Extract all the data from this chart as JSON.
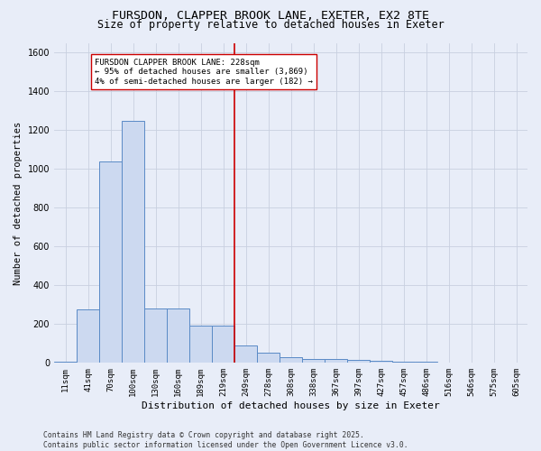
{
  "title1": "FURSDON, CLAPPER BROOK LANE, EXETER, EX2 8TE",
  "title2": "Size of property relative to detached houses in Exeter",
  "xlabel": "Distribution of detached houses by size in Exeter",
  "ylabel": "Number of detached properties",
  "categories": [
    "11sqm",
    "41sqm",
    "70sqm",
    "100sqm",
    "130sqm",
    "160sqm",
    "189sqm",
    "219sqm",
    "249sqm",
    "278sqm",
    "308sqm",
    "338sqm",
    "367sqm",
    "397sqm",
    "427sqm",
    "457sqm",
    "486sqm",
    "516sqm",
    "546sqm",
    "575sqm",
    "605sqm"
  ],
  "values": [
    5,
    275,
    1040,
    1250,
    280,
    280,
    190,
    190,
    90,
    55,
    30,
    20,
    20,
    15,
    10,
    8,
    5,
    3,
    2,
    2,
    1
  ],
  "bar_color": "#ccd9f0",
  "bar_edge_color": "#5a8ac6",
  "vline_color": "#cc0000",
  "annotation_text": "FURSDON CLAPPER BROOK LANE: 228sqm\n← 95% of detached houses are smaller (3,869)\n4% of semi-detached houses are larger (182) →",
  "annotation_box_color": "#ffffff",
  "annotation_box_edge": "#cc0000",
  "ylim": [
    0,
    1650
  ],
  "yticks": [
    0,
    200,
    400,
    600,
    800,
    1000,
    1200,
    1400,
    1600
  ],
  "grid_color": "#c8d0e0",
  "background_color": "#e8edf8",
  "footer": "Contains HM Land Registry data © Crown copyright and database right 2025.\nContains public sector information licensed under the Open Government Licence v3.0.",
  "title_fontsize": 9.5,
  "subtitle_fontsize": 8.5,
  "annotation_fontsize": 6.5,
  "ylabel_fontsize": 7.5,
  "xlabel_fontsize": 8,
  "tick_fontsize": 6.5,
  "ytick_fontsize": 7,
  "footer_fontsize": 5.8,
  "vline_pos": 7.5
}
